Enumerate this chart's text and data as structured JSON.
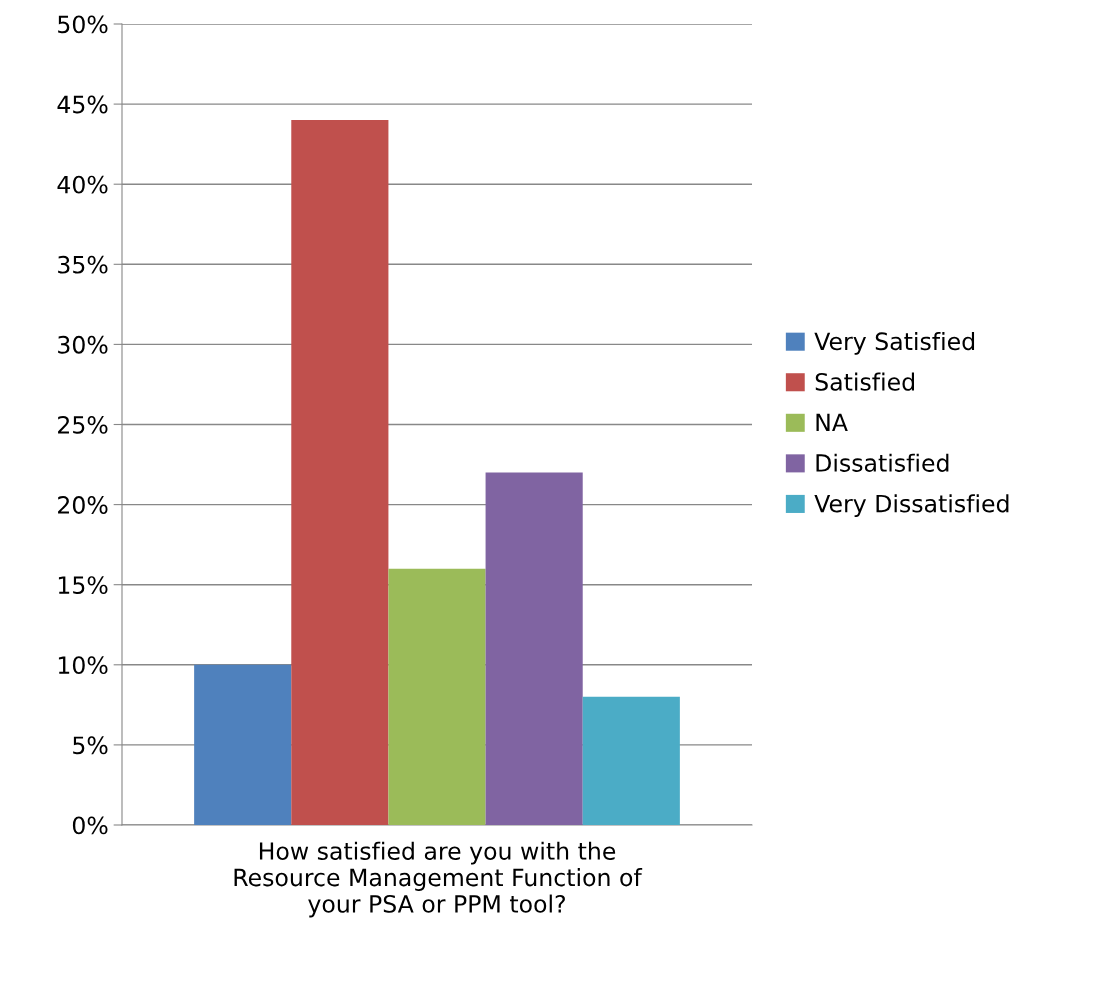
{
  "chart_data": {
    "type": "bar",
    "categories": [
      "How satisfied are you with the Resource Management Function of your PSA or PPM tool?"
    ],
    "series": [
      {
        "name": "Very Satisfied",
        "color": "#4f81bd",
        "values": [
          10
        ]
      },
      {
        "name": "Satisfied",
        "color": "#c0504d",
        "values": [
          44
        ]
      },
      {
        "name": "NA",
        "color": "#9bbb59",
        "values": [
          16
        ]
      },
      {
        "name": "Dissatisfied",
        "color": "#8064a2",
        "values": [
          22
        ]
      },
      {
        "name": "Very Dissatisfied",
        "color": "#4bacc6",
        "values": [
          8
        ]
      }
    ],
    "ylim": [
      0,
      50
    ],
    "yticks": [
      {
        "value": 0,
        "label": "0%"
      },
      {
        "value": 5,
        "label": "5%"
      },
      {
        "value": 10,
        "label": "10%"
      },
      {
        "value": 15,
        "label": "15%"
      },
      {
        "value": 20,
        "label": "20%"
      },
      {
        "value": 25,
        "label": "25%"
      },
      {
        "value": 30,
        "label": "30%"
      },
      {
        "value": 35,
        "label": "35%"
      },
      {
        "value": 40,
        "label": "40%"
      },
      {
        "value": 45,
        "label": "45%"
      },
      {
        "value": 50,
        "label": "50%"
      }
    ],
    "grid": "y",
    "legend": "right"
  }
}
